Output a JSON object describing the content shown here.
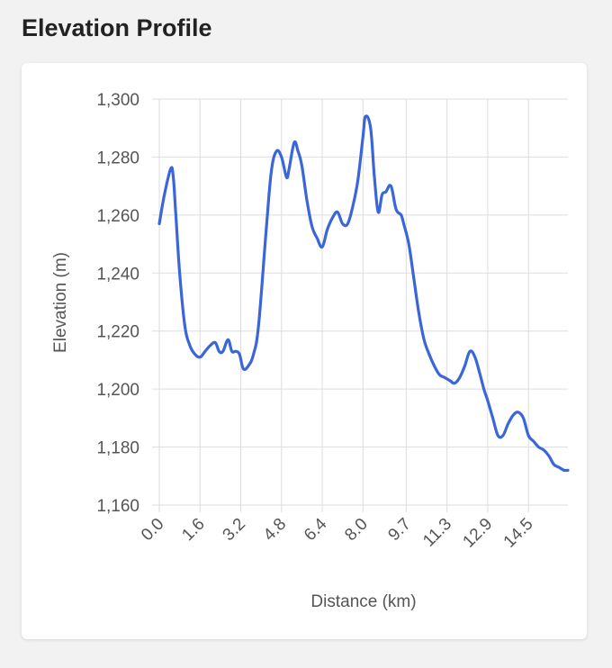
{
  "header": {
    "title": "Elevation Profile"
  },
  "chart_data": {
    "type": "line",
    "title": "",
    "xlabel": "Distance (km)",
    "ylabel": "Elevation (m)",
    "xlim": [
      0,
      16.05
    ],
    "ylim": [
      1160,
      1300
    ],
    "grid": true,
    "legend": "none",
    "line_color": "#3a66d8",
    "y_ticks": [
      1160,
      1180,
      1200,
      1220,
      1240,
      1260,
      1280,
      1300
    ],
    "y_tick_labels": [
      "1,160",
      "1,180",
      "1,200",
      "1,220",
      "1,240",
      "1,260",
      "1,280",
      "1,300"
    ],
    "x_ticks": [
      0.0,
      1.6,
      3.2,
      4.8,
      6.4,
      8.0,
      9.7,
      11.3,
      12.9,
      14.5
    ],
    "x_tick_labels": [
      "0.0",
      "1.6",
      "3.2",
      "4.8",
      "6.4",
      "8.0",
      "9.7",
      "11.3",
      "12.9",
      "14.5"
    ],
    "series": [
      {
        "x": [
          0.0,
          0.2,
          0.45,
          0.55,
          0.65,
          0.8,
          1.0,
          1.2,
          1.4,
          1.6,
          1.8,
          2.0,
          2.2,
          2.35,
          2.5,
          2.7,
          2.85,
          3.0,
          3.15,
          3.3,
          3.5,
          3.7,
          3.9,
          4.2,
          4.4,
          4.6,
          4.8,
          5.0,
          5.1,
          5.3,
          5.45,
          5.6,
          5.8,
          6.0,
          6.2,
          6.4,
          6.6,
          6.8,
          7.0,
          7.2,
          7.4,
          7.6,
          7.8,
          8.0,
          8.1,
          8.3,
          8.45,
          8.6,
          8.75,
          8.9,
          9.1,
          9.3,
          9.5,
          9.6,
          9.8,
          10.0,
          10.2,
          10.4,
          10.6,
          10.8,
          11.0,
          11.2,
          11.4,
          11.6,
          11.8,
          12.0,
          12.2,
          12.4,
          12.6,
          12.75,
          12.9,
          13.1,
          13.3,
          13.5,
          13.7,
          13.9,
          14.1,
          14.3,
          14.5,
          14.7,
          14.9,
          15.1,
          15.3,
          15.5,
          15.7,
          15.9,
          16.05
        ],
        "y": [
          1257,
          1267,
          1276,
          1273,
          1260,
          1240,
          1222,
          1215,
          1212,
          1211,
          1213,
          1215,
          1216,
          1213,
          1213,
          1217,
          1213,
          1213,
          1212,
          1207,
          1208,
          1212,
          1222,
          1255,
          1275,
          1282,
          1280,
          1273,
          1276,
          1285,
          1282,
          1277,
          1265,
          1256,
          1252,
          1249,
          1255,
          1259,
          1261,
          1257,
          1257,
          1263,
          1272,
          1287,
          1294,
          1290,
          1273,
          1261,
          1267,
          1268,
          1270,
          1262,
          1260,
          1257,
          1250,
          1238,
          1226,
          1217,
          1212,
          1208,
          1205,
          1204,
          1203,
          1202,
          1204,
          1208,
          1213,
          1211,
          1205,
          1200,
          1196,
          1190,
          1184,
          1184,
          1188,
          1191,
          1192,
          1190,
          1184,
          1182,
          1180,
          1179,
          1177,
          1174,
          1173,
          1172,
          1172
        ]
      }
    ]
  }
}
